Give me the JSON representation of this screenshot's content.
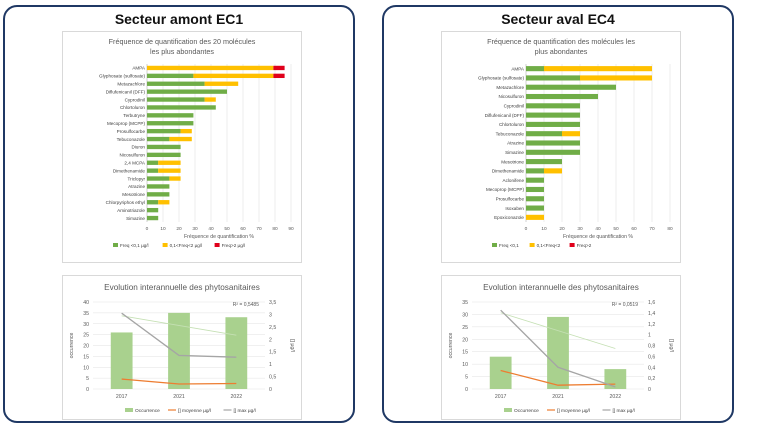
{
  "panels": [
    {
      "title": "Secteur amont EC1",
      "freq_chart": {
        "type": "bar",
        "title": "Fréquence de quantification des 20 molécules les plus abondantes",
        "title_lines": [
          "Fréquence de quantification des 20 molécules",
          "les plus abondantes"
        ],
        "xlabel": "Fréquence de quantification %",
        "xlim": [
          0,
          90
        ],
        "xticks": [
          0,
          10,
          20,
          30,
          40,
          50,
          60,
          70,
          80,
          90
        ],
        "categories": [
          "AMPA",
          "Glyphosate (sulfosate)",
          "Metazachlore",
          "Diflufenicanil (DFF)",
          "Cyprodinil",
          "Chlortoluron",
          "Terbutryne",
          "Mecoprop (MCPP)",
          "Prosulfocarbe",
          "Tebuconazole",
          "Diuron",
          "Nicosulfuron",
          "2,4 MCPA",
          "Dimethenamide",
          "Triclopyr",
          "Atrazine",
          "Mesotrione",
          "Chlorpyriphos ethyl",
          "Aminotriazole",
          "Simazine"
        ],
        "series": [
          {
            "name": "Freq <0,1 µg/l",
            "color": "#70ad47",
            "values": [
              0,
              29,
              36,
              50,
              36,
              43,
              29,
              29,
              21,
              14,
              21,
              21,
              7,
              7,
              14,
              14,
              14,
              7,
              7,
              7
            ]
          },
          {
            "name": "0,1<Freq<2 µg/l",
            "color": "#ffc000",
            "values": [
              79,
              50,
              21,
              0,
              7,
              0,
              0,
              0,
              7,
              14,
              0,
              0,
              14,
              14,
              7,
              0,
              0,
              7,
              0,
              0
            ]
          },
          {
            "name": "Freq>2 µg/l",
            "color": "#e0001b",
            "values": [
              7,
              7,
              0,
              0,
              0,
              0,
              0,
              0,
              0,
              0,
              0,
              0,
              0,
              0,
              0,
              0,
              0,
              0,
              0,
              0
            ]
          }
        ]
      },
      "evo_chart": {
        "type": "bar",
        "title": "Evolution interannuelle des phytosanitaires",
        "categories": [
          "2017",
          "2021",
          "2022"
        ],
        "ylabel": "occurrence",
        "ylim": [
          0,
          40
        ],
        "yticks": [
          0,
          5,
          10,
          15,
          20,
          25,
          30,
          35,
          40
        ],
        "y2label": "[] µg/l",
        "y2lim": [
          0,
          3.5
        ],
        "y2ticks": [
          "0",
          "0,5",
          "1",
          "1,5",
          "2",
          "2,5",
          "3",
          "3,5"
        ],
        "r2": "R² = 0,5485",
        "series": [
          {
            "name": "Occurrence",
            "color": "#a9d18e",
            "axis": "left",
            "values": [
              26,
              35,
              33
            ]
          },
          {
            "name": "[] moyenne µg/l",
            "color": "#ed7d31",
            "axis": "right",
            "values": [
              0.4,
              0.2,
              0.22
            ]
          },
          {
            "name": "[] max µg/l",
            "color": "#a5a5a5",
            "axis": "right",
            "values": [
              3.05,
              1.35,
              1.28
            ]
          }
        ]
      }
    },
    {
      "title": "Secteur aval EC4",
      "freq_chart": {
        "type": "bar",
        "title": "Fréquence de quantification des molécules les plus abondantes",
        "title_lines": [
          "Fréquence de quantification des molécules les",
          "plus abondantes"
        ],
        "xlabel": "Fréquence de quantification %",
        "xlim": [
          0,
          80
        ],
        "xticks": [
          0,
          10,
          20,
          30,
          40,
          50,
          60,
          70,
          80
        ],
        "categories": [
          "AMPA",
          "Glyphosate (sulfosate)",
          "Metazachlore",
          "Nicosulfuron",
          "Cyprodinil",
          "Diflufenicanil (DFF)",
          "Chlortoluron",
          "Tebuconazole",
          "Atrazine",
          "Simazine",
          "Mesotrione",
          "Dimethenamide",
          "Aclonifene",
          "Mecoprop (MCPP)",
          "Prosulfocarbe",
          "Isoxaben",
          "Epoxiconazole"
        ],
        "series": [
          {
            "name": "Freq <0,1",
            "color": "#70ad47",
            "values": [
              10,
              30,
              50,
              40,
              30,
              30,
              30,
              20,
              30,
              30,
              20,
              10,
              10,
              10,
              10,
              10,
              0
            ]
          },
          {
            "name": "0,1<Freq<2",
            "color": "#ffc000",
            "values": [
              60,
              40,
              0,
              0,
              0,
              0,
              0,
              10,
              0,
              0,
              0,
              10,
              0,
              0,
              0,
              0,
              10
            ]
          },
          {
            "name": "Freq>2",
            "color": "#e0001b",
            "values": [
              0,
              0,
              0,
              0,
              0,
              0,
              0,
              0,
              0,
              0,
              0,
              0,
              0,
              0,
              0,
              0,
              0
            ]
          }
        ]
      },
      "evo_chart": {
        "type": "bar",
        "title": "Evolution interannuelle des phytosanitaires",
        "categories": [
          "2017",
          "2021",
          "2022"
        ],
        "ylabel": "occurrence",
        "ylim": [
          0,
          35
        ],
        "yticks": [
          0,
          5,
          10,
          15,
          20,
          25,
          30,
          35
        ],
        "y2label": "[] µg/l",
        "y2lim": [
          0,
          1.6
        ],
        "y2ticks": [
          "0",
          "0,2",
          "0,4",
          "0,6",
          "0,8",
          "1",
          "1,2",
          "1,4",
          "1,6"
        ],
        "r2": "R² = 0,0519",
        "series": [
          {
            "name": "Occurrence",
            "color": "#a9d18e",
            "axis": "left",
            "values": [
              13,
              29,
              8
            ]
          },
          {
            "name": "[] moyenne µg/l",
            "color": "#ed7d31",
            "axis": "right",
            "values": [
              0.34,
              0.07,
              0.09
            ]
          },
          {
            "name": "[] max µg/l",
            "color": "#a5a5a5",
            "axis": "right",
            "values": [
              1.45,
              0.4,
              0.04
            ]
          }
        ]
      }
    }
  ],
  "colors": {
    "frame": "#1f3864",
    "grid": "#d9d9d9",
    "trend": "#c5e0b4"
  }
}
